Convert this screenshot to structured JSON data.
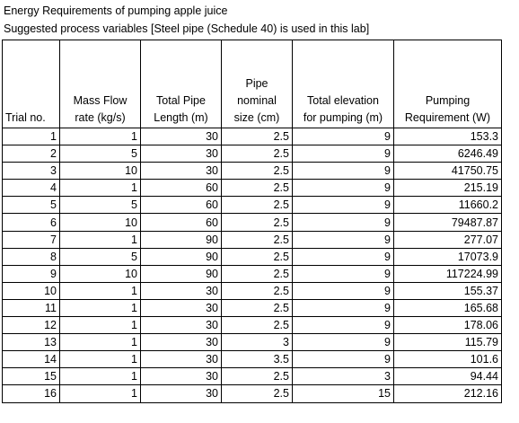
{
  "title": "Energy Requirements of pumping apple juice",
  "subtitle": "Suggested process variables [Steel pipe (Schedule 40) is used in this lab]",
  "headers": [
    [
      "Trial no."
    ],
    [
      "Mass Flow",
      "rate (kg/s)"
    ],
    [
      "Total Pipe",
      "Length (m)"
    ],
    [
      "Pipe",
      "nominal",
      "size (cm)"
    ],
    [
      "Total elevation",
      "for pumping (m)"
    ],
    [
      "Pumping",
      "Requirement (W)"
    ]
  ],
  "rows": [
    [
      "1",
      "1",
      "30",
      "2.5",
      "9",
      "153.3"
    ],
    [
      "2",
      "5",
      "30",
      "2.5",
      "9",
      "6246.49"
    ],
    [
      "3",
      "10",
      "30",
      "2.5",
      "9",
      "41750.75"
    ],
    [
      "4",
      "1",
      "60",
      "2.5",
      "9",
      "215.19"
    ],
    [
      "5",
      "5",
      "60",
      "2.5",
      "9",
      "11660.2"
    ],
    [
      "6",
      "10",
      "60",
      "2.5",
      "9",
      "79487.87"
    ],
    [
      "7",
      "1",
      "90",
      "2.5",
      "9",
      "277.07"
    ],
    [
      "8",
      "5",
      "90",
      "2.5",
      "9",
      "17073.9"
    ],
    [
      "9",
      "10",
      "90",
      "2.5",
      "9",
      "117224.99"
    ],
    [
      "10",
      "1",
      "30",
      "2.5",
      "9",
      "155.37"
    ],
    [
      "11",
      "1",
      "30",
      "2.5",
      "9",
      "165.68"
    ],
    [
      "12",
      "1",
      "30",
      "2.5",
      "9",
      "178.06"
    ],
    [
      "13",
      "1",
      "30",
      "3",
      "9",
      "115.79"
    ],
    [
      "14",
      "1",
      "30",
      "3.5",
      "9",
      "101.6"
    ],
    [
      "15",
      "1",
      "30",
      "2.5",
      "3",
      "94.44"
    ],
    [
      "16",
      "1",
      "30",
      "2.5",
      "15",
      "212.16"
    ]
  ]
}
